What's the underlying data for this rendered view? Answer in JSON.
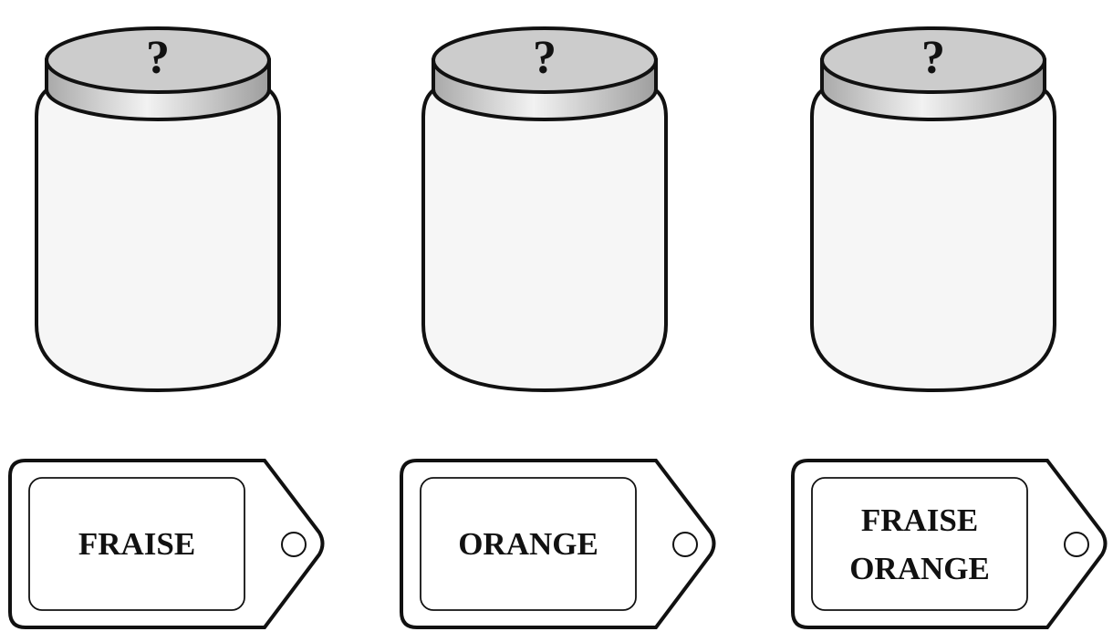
{
  "jars": [
    {
      "lid_text": "?"
    },
    {
      "lid_text": "?"
    },
    {
      "lid_text": "?"
    }
  ],
  "tags": [
    {
      "lines": [
        "FRAISE"
      ]
    },
    {
      "lines": [
        "ORANGE"
      ]
    },
    {
      "lines": [
        "FRAISE",
        "ORANGE"
      ]
    }
  ],
  "colors": {
    "outline": "#111111",
    "lid_top": "#cccccc",
    "jar_body": "#f6f6f6"
  }
}
